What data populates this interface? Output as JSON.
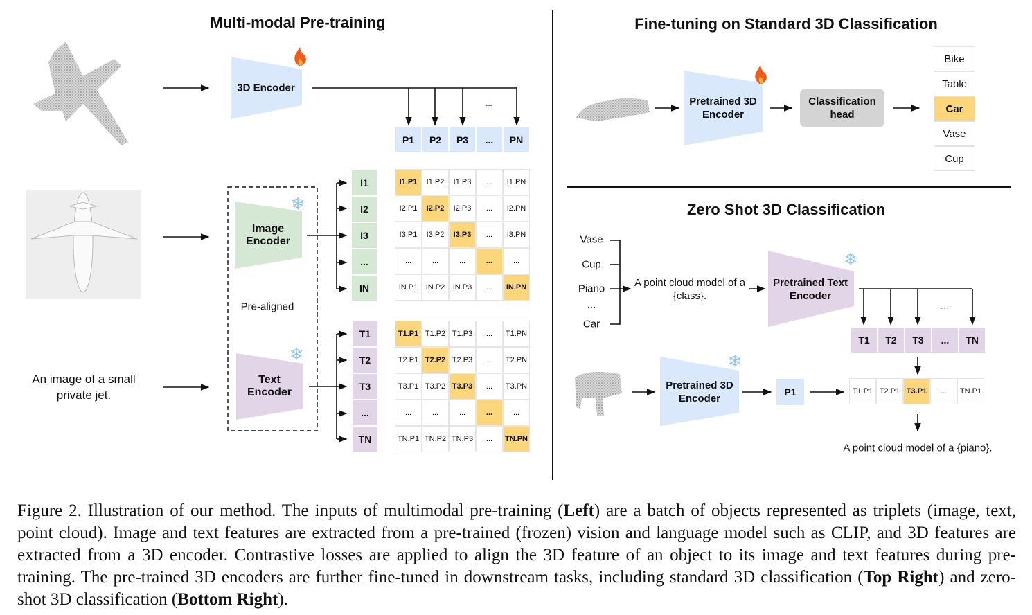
{
  "left": {
    "title": "Multi-modal Pre-training",
    "encoder_3d": "3D Encoder",
    "image_encoder": "Image Encoder",
    "text_encoder": "Text Encoder",
    "pre_aligned": "Pre-aligned",
    "text_input": "An image of a small private jet.",
    "p_row": [
      "P1",
      "P2",
      "P3",
      "...",
      "PN"
    ],
    "i_col": [
      "I1",
      "I2",
      "I3",
      "...",
      "IN"
    ],
    "t_col": [
      "T1",
      "T2",
      "T3",
      "...",
      "TN"
    ],
    "dots": "...",
    "i_matrix": [
      [
        "I1.P1",
        "I1.P2",
        "I1.P3",
        "...",
        "I1.PN"
      ],
      [
        "I2.P1",
        "I2.P2",
        "I2.P3",
        "...",
        "I2.PN"
      ],
      [
        "I3.P1",
        "I3.P2",
        "I3.P3",
        "...",
        "I3.PN"
      ],
      [
        "...",
        "...",
        "...",
        "...",
        "..."
      ],
      [
        "IN.P1",
        "IN.P2",
        "IN.P3",
        "...",
        "IN.PN"
      ]
    ],
    "t_matrix": [
      [
        "T1.P1",
        "T1.P2",
        "T1.P3",
        "...",
        "T1.PN"
      ],
      [
        "T2.P1",
        "T2.P2",
        "T2.P3",
        "...",
        "T2.PN"
      ],
      [
        "T3.P1",
        "T3.P2",
        "T3.P3",
        "...",
        "T3.PN"
      ],
      [
        "...",
        "...",
        "...",
        "...",
        "..."
      ],
      [
        "TN.P1",
        "TN.P2",
        "TN.P3",
        "...",
        "TN.PN"
      ]
    ]
  },
  "finetune": {
    "title": "Fine-tuning on Standard 3D Classification",
    "encoder": "Pretrained 3D Encoder",
    "head": "Classification head",
    "classes": [
      "Bike",
      "Table",
      "Car",
      "Vase",
      "Cup"
    ],
    "selected": "Car"
  },
  "zeroshot": {
    "title": "Zero Shot 3D Classification",
    "classes": [
      "Vase",
      "Cup",
      "Piano",
      "...",
      "Car"
    ],
    "prompt": "A point cloud model of a {class}.",
    "text_encoder": "Pretrained Text Encoder",
    "encoder_3d": "Pretrained 3D Encoder",
    "t_row": [
      "T1",
      "T2",
      "T3",
      "...",
      "TN"
    ],
    "dots": "...",
    "p1": "P1",
    "scores": [
      "T1.P1",
      "T2.P1",
      "T3.P1",
      "...",
      "TN.P1"
    ],
    "selected_index": 2,
    "result": "A point cloud model of a {piano}."
  },
  "colors": {
    "blue": "#dae8fc",
    "green": "#d5e8d4",
    "purple": "#e1d5e7",
    "highlight": "#fcd67a",
    "head_gray": "#d4d4d4"
  },
  "icons": {
    "trainable": "fire-icon",
    "frozen": "snowflake-icon"
  },
  "caption": {
    "p1": "Figure 2. Illustration of our method. The inputs of multimodal pre-training (",
    "b1": "Left",
    "p2": ") are a batch of objects represented as triplets (image, text, point cloud). Image and text features are extracted from a pre-trained (frozen) vision and language model such as CLIP, and 3D features are extracted from a 3D encoder. Contrastive losses are applied to align the 3D feature of an object to its image and text features during pre-training. The pre-trained 3D encoders are further fine-tuned in downstream tasks, including standard 3D classification (",
    "b2": "Top Right",
    "p3": ") and zero-shot 3D classification (",
    "b3": "Bottom Right",
    "p4": ")."
  }
}
